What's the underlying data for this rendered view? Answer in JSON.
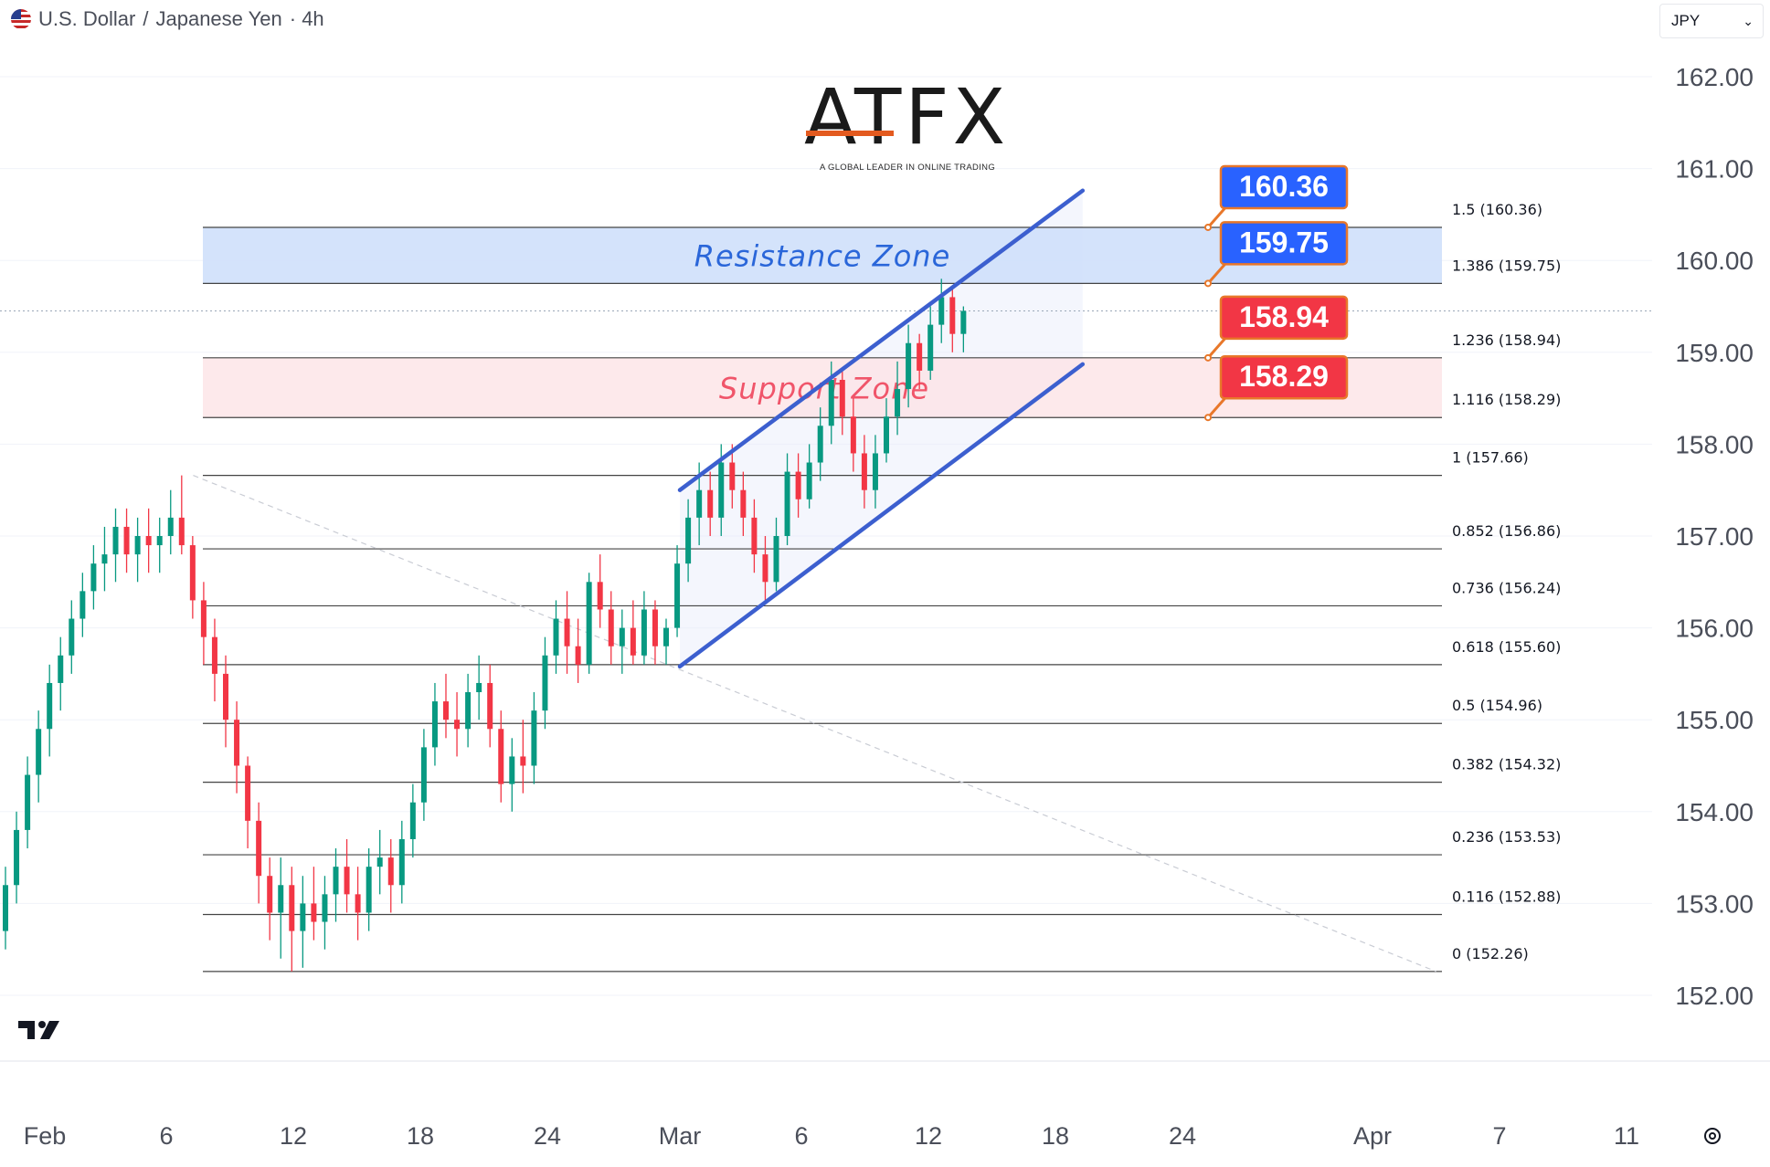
{
  "header": {
    "symbol": "U.S. Dollar",
    "separator": "/",
    "quote": "Japanese Yen",
    "interval": "· 4h",
    "flag_icon": "us-flag-icon"
  },
  "currency_select": {
    "value": "JPY",
    "icon": "chevron-down-icon"
  },
  "logo": {
    "text": "ATFX",
    "tagline": "A GLOBAL LEADER IN ONLINE TRADING",
    "accent": "#e35a1f"
  },
  "colors": {
    "up": "#089981",
    "down": "#f23645",
    "channel": "#3c5fcf",
    "resistance_fill": "#cfe0fb",
    "support_fill": "#fde3e6",
    "label_blue": "#2962ff",
    "label_red": "#f23645",
    "connector": "#e8772a"
  },
  "chart_data": {
    "type": "candlestick",
    "instrument": "U.S. Dollar / Japanese Yen",
    "timeframe": "4h",
    "ylim": [
      151.5,
      162.6
    ],
    "y_ticks": [
      "162.00",
      "161.00",
      "160.00",
      "159.00",
      "158.00",
      "157.00",
      "156.00",
      "155.00",
      "154.00",
      "153.00",
      "152.00"
    ],
    "x_ticks": [
      "Feb",
      "6",
      "12",
      "18",
      "24",
      "Mar",
      "6",
      "12",
      "18",
      "24",
      "Apr",
      "7",
      "11"
    ],
    "current_price": 159.45,
    "fibonacci": [
      {
        "label": "1.5 (160.36)",
        "value": 160.36
      },
      {
        "label": "1.386 (159.75)",
        "value": 159.75
      },
      {
        "label": "1.236 (158.94)",
        "value": 158.94
      },
      {
        "label": "1.116 (158.29)",
        "value": 158.29
      },
      {
        "label": "1 (157.66)",
        "value": 157.66
      },
      {
        "label": "0.852 (156.86)",
        "value": 156.86
      },
      {
        "label": "0.736 (156.24)",
        "value": 156.24
      },
      {
        "label": "0.618 (155.60)",
        "value": 155.6
      },
      {
        "label": "0.5 (154.96)",
        "value": 154.96
      },
      {
        "label": "0.382 (154.32)",
        "value": 154.32
      },
      {
        "label": "0.236 (153.53)",
        "value": 153.53
      },
      {
        "label": "0.116 (152.88)",
        "value": 152.88
      },
      {
        "label": "0 (152.26)",
        "value": 152.26
      }
    ],
    "zones": [
      {
        "label": "Resistance Zone",
        "low": 159.75,
        "high": 160.36,
        "kind": "resistance"
      },
      {
        "label": "Support Zone",
        "low": 158.29,
        "high": 158.94,
        "kind": "support"
      }
    ],
    "price_labels": [
      {
        "text": "160.36",
        "value": 160.36,
        "kind": "resistance"
      },
      {
        "text": "159.75",
        "value": 159.75,
        "kind": "resistance"
      },
      {
        "text": "158.94",
        "value": 158.94,
        "kind": "support"
      },
      {
        "text": "158.29",
        "value": 158.29,
        "kind": "support"
      }
    ],
    "channel": {
      "upper": [
        {
          "date": "Mar 1",
          "price": 157.5
        },
        {
          "date": "Mar 20",
          "price": 160.76
        }
      ],
      "lower": [
        {
          "date": "Mar 1",
          "price": 155.58
        },
        {
          "date": "Mar 20",
          "price": 158.87
        }
      ]
    },
    "trend_line": [
      {
        "date": "Feb 8",
        "price": 157.66
      },
      {
        "date": "Apr 4",
        "price": 152.26
      }
    ],
    "candles": [
      {
        "o": 152.7,
        "h": 153.4,
        "l": 152.5,
        "c": 153.2
      },
      {
        "o": 153.2,
        "h": 154.0,
        "l": 153.0,
        "c": 153.8
      },
      {
        "o": 153.8,
        "h": 154.6,
        "l": 153.6,
        "c": 154.4
      },
      {
        "o": 154.4,
        "h": 155.1,
        "l": 154.1,
        "c": 154.9
      },
      {
        "o": 154.9,
        "h": 155.6,
        "l": 154.6,
        "c": 155.4
      },
      {
        "o": 155.4,
        "h": 155.9,
        "l": 155.1,
        "c": 155.7
      },
      {
        "o": 155.7,
        "h": 156.3,
        "l": 155.5,
        "c": 156.1
      },
      {
        "o": 156.1,
        "h": 156.6,
        "l": 155.9,
        "c": 156.4
      },
      {
        "o": 156.4,
        "h": 156.9,
        "l": 156.2,
        "c": 156.7
      },
      {
        "o": 156.7,
        "h": 157.1,
        "l": 156.4,
        "c": 156.8
      },
      {
        "o": 156.8,
        "h": 157.3,
        "l": 156.5,
        "c": 157.1
      },
      {
        "o": 157.1,
        "h": 157.3,
        "l": 156.6,
        "c": 156.8
      },
      {
        "o": 156.8,
        "h": 157.2,
        "l": 156.5,
        "c": 157.0
      },
      {
        "o": 157.0,
        "h": 157.3,
        "l": 156.6,
        "c": 156.9
      },
      {
        "o": 156.9,
        "h": 157.2,
        "l": 156.6,
        "c": 157.0
      },
      {
        "o": 157.0,
        "h": 157.5,
        "l": 156.8,
        "c": 157.2
      },
      {
        "o": 157.2,
        "h": 157.66,
        "l": 156.8,
        "c": 156.9
      },
      {
        "o": 156.9,
        "h": 157.0,
        "l": 156.1,
        "c": 156.3
      },
      {
        "o": 156.3,
        "h": 156.5,
        "l": 155.6,
        "c": 155.9
      },
      {
        "o": 155.9,
        "h": 156.1,
        "l": 155.2,
        "c": 155.5
      },
      {
        "o": 155.5,
        "h": 155.7,
        "l": 154.7,
        "c": 155.0
      },
      {
        "o": 155.0,
        "h": 155.2,
        "l": 154.2,
        "c": 154.5
      },
      {
        "o": 154.5,
        "h": 154.6,
        "l": 153.6,
        "c": 153.9
      },
      {
        "o": 153.9,
        "h": 154.1,
        "l": 153.0,
        "c": 153.3
      },
      {
        "o": 153.3,
        "h": 153.5,
        "l": 152.6,
        "c": 152.9
      },
      {
        "o": 152.9,
        "h": 153.5,
        "l": 152.4,
        "c": 153.2
      },
      {
        "o": 153.2,
        "h": 153.4,
        "l": 152.26,
        "c": 152.7
      },
      {
        "o": 152.7,
        "h": 153.3,
        "l": 152.3,
        "c": 153.0
      },
      {
        "o": 153.0,
        "h": 153.4,
        "l": 152.6,
        "c": 152.8
      },
      {
        "o": 152.8,
        "h": 153.3,
        "l": 152.5,
        "c": 153.1
      },
      {
        "o": 153.1,
        "h": 153.6,
        "l": 152.8,
        "c": 153.4
      },
      {
        "o": 153.4,
        "h": 153.7,
        "l": 152.9,
        "c": 153.1
      },
      {
        "o": 153.1,
        "h": 153.4,
        "l": 152.6,
        "c": 152.9
      },
      {
        "o": 152.9,
        "h": 153.6,
        "l": 152.7,
        "c": 153.4
      },
      {
        "o": 153.4,
        "h": 153.8,
        "l": 153.1,
        "c": 153.5
      },
      {
        "o": 153.5,
        "h": 153.7,
        "l": 152.9,
        "c": 153.2
      },
      {
        "o": 153.2,
        "h": 153.9,
        "l": 153.0,
        "c": 153.7
      },
      {
        "o": 153.7,
        "h": 154.3,
        "l": 153.5,
        "c": 154.1
      },
      {
        "o": 154.1,
        "h": 154.9,
        "l": 153.9,
        "c": 154.7
      },
      {
        "o": 154.7,
        "h": 155.4,
        "l": 154.5,
        "c": 155.2
      },
      {
        "o": 155.2,
        "h": 155.5,
        "l": 154.8,
        "c": 155.0
      },
      {
        "o": 155.0,
        "h": 155.3,
        "l": 154.6,
        "c": 154.9
      },
      {
        "o": 154.9,
        "h": 155.5,
        "l": 154.7,
        "c": 155.3
      },
      {
        "o": 155.3,
        "h": 155.7,
        "l": 155.0,
        "c": 155.4
      },
      {
        "o": 155.4,
        "h": 155.6,
        "l": 154.7,
        "c": 154.9
      },
      {
        "o": 154.9,
        "h": 155.1,
        "l": 154.1,
        "c": 154.3
      },
      {
        "o": 154.3,
        "h": 154.8,
        "l": 154.0,
        "c": 154.6
      },
      {
        "o": 154.6,
        "h": 155.0,
        "l": 154.2,
        "c": 154.5
      },
      {
        "o": 154.5,
        "h": 155.3,
        "l": 154.3,
        "c": 155.1
      },
      {
        "o": 155.1,
        "h": 155.9,
        "l": 154.9,
        "c": 155.7
      },
      {
        "o": 155.7,
        "h": 156.3,
        "l": 155.5,
        "c": 156.1
      },
      {
        "o": 156.1,
        "h": 156.4,
        "l": 155.5,
        "c": 155.8
      },
      {
        "o": 155.8,
        "h": 156.1,
        "l": 155.4,
        "c": 155.6
      },
      {
        "o": 155.6,
        "h": 156.6,
        "l": 155.5,
        "c": 156.5
      },
      {
        "o": 156.5,
        "h": 156.8,
        "l": 156.0,
        "c": 156.2
      },
      {
        "o": 156.2,
        "h": 156.4,
        "l": 155.6,
        "c": 155.8
      },
      {
        "o": 155.8,
        "h": 156.2,
        "l": 155.5,
        "c": 156.0
      },
      {
        "o": 156.0,
        "h": 156.3,
        "l": 155.6,
        "c": 155.7
      },
      {
        "o": 155.7,
        "h": 156.4,
        "l": 155.6,
        "c": 156.2
      },
      {
        "o": 156.2,
        "h": 156.3,
        "l": 155.6,
        "c": 155.8
      },
      {
        "o": 155.8,
        "h": 156.1,
        "l": 155.6,
        "c": 156.0
      },
      {
        "o": 156.0,
        "h": 156.9,
        "l": 155.9,
        "c": 156.7
      },
      {
        "o": 156.7,
        "h": 157.4,
        "l": 156.5,
        "c": 157.2
      },
      {
        "o": 157.2,
        "h": 157.8,
        "l": 156.9,
        "c": 157.5
      },
      {
        "o": 157.5,
        "h": 157.7,
        "l": 157.0,
        "c": 157.2
      },
      {
        "o": 157.2,
        "h": 158.0,
        "l": 157.0,
        "c": 157.8
      },
      {
        "o": 157.8,
        "h": 158.0,
        "l": 157.3,
        "c": 157.5
      },
      {
        "o": 157.5,
        "h": 157.7,
        "l": 157.0,
        "c": 157.2
      },
      {
        "o": 157.2,
        "h": 157.4,
        "l": 156.6,
        "c": 156.8
      },
      {
        "o": 156.8,
        "h": 157.0,
        "l": 156.3,
        "c": 156.5
      },
      {
        "o": 156.5,
        "h": 157.2,
        "l": 156.4,
        "c": 157.0
      },
      {
        "o": 157.0,
        "h": 157.9,
        "l": 156.9,
        "c": 157.7
      },
      {
        "o": 157.7,
        "h": 157.9,
        "l": 157.2,
        "c": 157.4
      },
      {
        "o": 157.4,
        "h": 158.0,
        "l": 157.3,
        "c": 157.8
      },
      {
        "o": 157.8,
        "h": 158.4,
        "l": 157.6,
        "c": 158.2
      },
      {
        "o": 158.2,
        "h": 158.9,
        "l": 158.0,
        "c": 158.7
      },
      {
        "o": 158.7,
        "h": 158.8,
        "l": 158.1,
        "c": 158.3
      },
      {
        "o": 158.3,
        "h": 158.5,
        "l": 157.7,
        "c": 157.9
      },
      {
        "o": 157.9,
        "h": 158.1,
        "l": 157.3,
        "c": 157.5
      },
      {
        "o": 157.5,
        "h": 158.1,
        "l": 157.3,
        "c": 157.9
      },
      {
        "o": 157.9,
        "h": 158.5,
        "l": 157.8,
        "c": 158.3
      },
      {
        "o": 158.3,
        "h": 158.9,
        "l": 158.1,
        "c": 158.6
      },
      {
        "o": 158.6,
        "h": 159.3,
        "l": 158.4,
        "c": 159.1
      },
      {
        "o": 159.1,
        "h": 159.2,
        "l": 158.6,
        "c": 158.8
      },
      {
        "o": 158.8,
        "h": 159.5,
        "l": 158.7,
        "c": 159.3
      },
      {
        "o": 159.3,
        "h": 159.8,
        "l": 159.1,
        "c": 159.6
      },
      {
        "o": 159.6,
        "h": 159.7,
        "l": 159.0,
        "c": 159.2
      },
      {
        "o": 159.2,
        "h": 159.5,
        "l": 159.0,
        "c": 159.45
      }
    ]
  }
}
